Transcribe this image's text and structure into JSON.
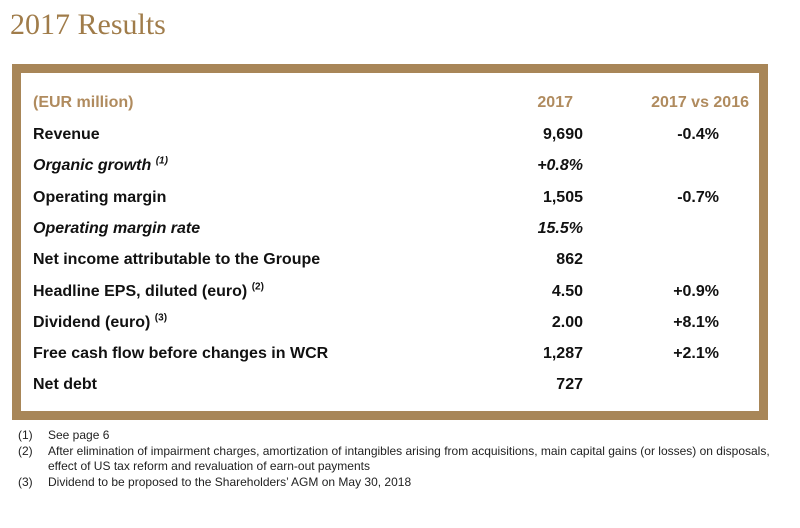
{
  "title": "2017 Results",
  "table": {
    "header": {
      "label": "(EUR million)",
      "col1": "2017",
      "col2": "2017 vs 2016"
    },
    "rows": [
      {
        "label": "Revenue",
        "sup": "",
        "value": "9,690",
        "change": "-0.4%",
        "italic": false
      },
      {
        "label": "Organic growth",
        "sup": "(1)",
        "value": "+0.8%",
        "change": "",
        "italic": true
      },
      {
        "label": "Operating margin",
        "sup": "",
        "value": "1,505",
        "change": "-0.7%",
        "italic": false
      },
      {
        "label": "Operating margin rate",
        "sup": "",
        "value": "15.5%",
        "change": "",
        "italic": true
      },
      {
        "label": "Net income attributable to the Groupe",
        "sup": "",
        "value": "862",
        "change": "",
        "italic": false
      },
      {
        "label": "Headline EPS, diluted (euro)",
        "sup": "(2)",
        "value": "4.50",
        "change": "+0.9%",
        "italic": false
      },
      {
        "label": "Dividend (euro)",
        "sup": "(3)",
        "value": "2.00",
        "change": "+8.1%",
        "italic": false
      },
      {
        "label": "Free cash flow before changes in WCR",
        "sup": "",
        "value": "1,287",
        "change": "+2.1%",
        "italic": false
      },
      {
        "label": "Net debt",
        "sup": "",
        "value": "727",
        "change": "",
        "italic": false
      }
    ]
  },
  "footnotes": [
    {
      "num": "(1)",
      "text": "See page 6"
    },
    {
      "num": "(2)",
      "text": "After elimination of impairment charges, amortization of intangibles arising from acquisitions, main capital gains (or losses) on disposals, effect of US tax reform and revaluation of earn-out payments"
    },
    {
      "num": "(3)",
      "text": "Dividend to be proposed to the Shareholders’ AGM on May 30, 2018"
    }
  ],
  "colors": {
    "accent": "#a88658",
    "title": "#a07c4a",
    "header_text": "#b08b5e"
  }
}
